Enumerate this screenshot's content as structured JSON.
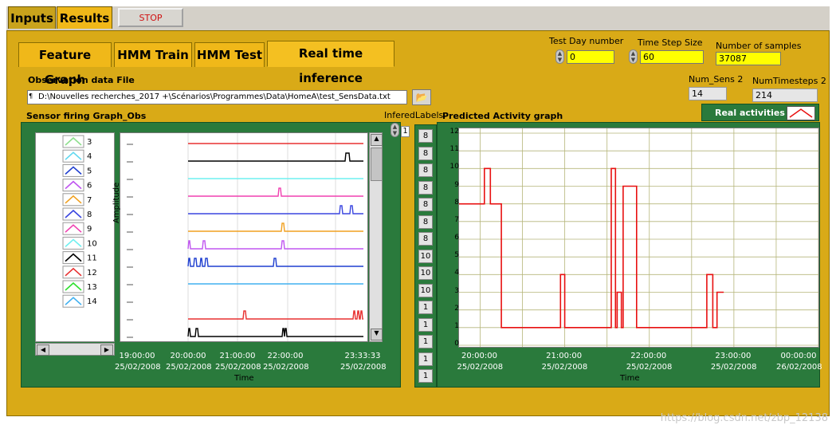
{
  "top_tabs": [
    "Inputs",
    "Results"
  ],
  "stop_label": "STOP",
  "sub_tabs": [
    "Feature Graph",
    "HMM Train",
    "HMM Test",
    "Real time inference"
  ],
  "controls": {
    "test_day_label": "Test Day number",
    "test_day_value": "0",
    "time_step_label": "Time Step Size",
    "time_step_value": "60",
    "samples_label": "Number of samples",
    "samples_value": "37087",
    "num_sens_label": "Num_Sens 2",
    "num_sens_value": "14",
    "num_timesteps_label": "NumTimesteps 2",
    "num_timesteps_value": "214"
  },
  "observation": {
    "label": "Observation data File",
    "path": "D:\\Nouvelles recherches_2017 +\\Scénarios\\Programmes\\Data\\HomeA\\test_SensData.txt"
  },
  "sensor_graph": {
    "title": "Sensor firing Graph_Obs",
    "ylabel": "Amplitude",
    "xlabel": "Time",
    "ticks": [
      [
        "19:00:00",
        "25/02/2008"
      ],
      [
        "20:00:00",
        "25/02/2008"
      ],
      [
        "21:00:00",
        "25/02/2008"
      ],
      [
        "22:00:00",
        "25/02/2008"
      ],
      [
        "23:33:33",
        "25/02/2008"
      ]
    ],
    "legend": [
      {
        "name": "3",
        "color": "#8fe08f"
      },
      {
        "name": "4",
        "color": "#5ed8f0"
      },
      {
        "name": "5",
        "color": "#1f3fd0"
      },
      {
        "name": "6",
        "color": "#c056f0"
      },
      {
        "name": "7",
        "color": "#f0a020"
      },
      {
        "name": "8",
        "color": "#3a46e0"
      },
      {
        "name": "9",
        "color": "#f040b0"
      },
      {
        "name": "10",
        "color": "#6ff0f0"
      },
      {
        "name": "11",
        "color": "#000000"
      },
      {
        "name": "12",
        "color": "#e83030"
      },
      {
        "name": "13",
        "color": "#30e030"
      },
      {
        "name": "14",
        "color": "#40b0f0"
      }
    ]
  },
  "infered": {
    "label": "InferedLabels",
    "index": "1",
    "values": [
      "8",
      "8",
      "8",
      "8",
      "8",
      "8",
      "8",
      "10",
      "10",
      "10",
      "1",
      "1",
      "1",
      "1",
      "1"
    ]
  },
  "activity_graph": {
    "title": "Predicted Activity graph",
    "legend_label": "Real activities",
    "xlabel": "Time",
    "ticks": [
      [
        "20:00:00",
        "25/02/2008"
      ],
      [
        "21:00:00",
        "25/02/2008"
      ],
      [
        "22:00:00",
        "25/02/2008"
      ],
      [
        "23:00:00",
        "25/02/2008"
      ],
      [
        "00:00:00",
        "26/02/2008"
      ]
    ],
    "series_color": "#e81010"
  },
  "chart_data": {
    "type": "line",
    "title": "Predicted Activity graph",
    "xlabel": "Time",
    "ylabel": "",
    "ylim": [
      0,
      12
    ],
    "x_unit": "hours since 25/02/2008 20:00:00",
    "series": [
      {
        "name": "Real activities",
        "x": [
          -0.25,
          0.05,
          0.05,
          0.12,
          0.12,
          0.25,
          0.25,
          0.95,
          0.95,
          1.0,
          1.0,
          1.55,
          1.55,
          1.6,
          1.6,
          1.62,
          1.62,
          1.67,
          1.67,
          1.69,
          1.69,
          1.75,
          1.75,
          1.85,
          1.85,
          2.68,
          2.68,
          2.75,
          2.75,
          2.8,
          2.8,
          2.88
        ],
        "values": [
          8,
          8,
          10,
          10,
          8,
          8,
          1,
          1,
          4,
          4,
          1,
          1,
          10,
          10,
          1,
          1,
          3,
          3,
          1,
          1,
          9,
          9,
          9,
          9,
          1,
          1,
          4,
          4,
          1,
          1,
          3,
          3
        ]
      }
    ],
    "grid": true,
    "legend": "top-right"
  },
  "watermark": "https://blog.csdn.net/zbp_12138"
}
